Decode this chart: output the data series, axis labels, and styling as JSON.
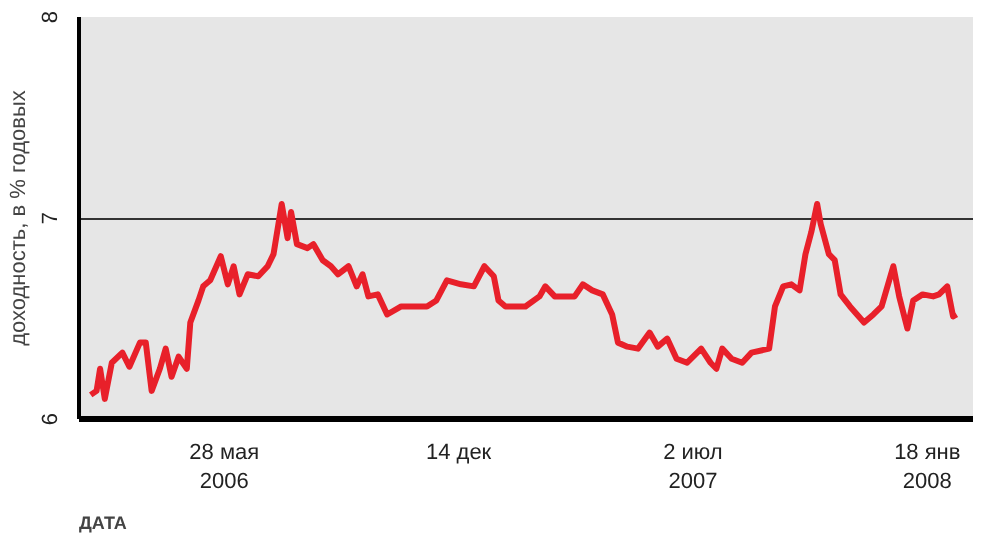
{
  "chart_data": {
    "type": "line",
    "ylabel": "доходность, в % годовых",
    "xlabel": "ДАТА",
    "xlim": [
      "2006-01-24",
      "2008-02-26"
    ],
    "ylim": [
      6,
      8
    ],
    "yticks": [
      6,
      7,
      8
    ],
    "xticks": [
      {
        "value": "2006-05-28",
        "label": "28 мая\n2006"
      },
      {
        "value": "2006-12-14",
        "label": "14 дек"
      },
      {
        "value": "2007-07-02",
        "label": "2 июл\n2007"
      },
      {
        "value": "2008-01-18",
        "label": "18 янв\n2008"
      }
    ],
    "grid": "y",
    "marker": "none",
    "line_style": "solid",
    "series": [
      {
        "color": "#e8202a",
        "x": [
          "2006-02-03",
          "2006-02-08",
          "2006-02-11",
          "2006-02-15",
          "2006-02-21",
          "2006-03-02",
          "2006-03-08",
          "2006-03-17",
          "2006-03-22",
          "2006-03-27",
          "2006-04-03",
          "2006-04-08",
          "2006-04-13",
          "2006-04-19",
          "2006-04-26",
          "2006-04-29",
          "2006-05-06",
          "2006-05-10",
          "2006-05-16",
          "2006-05-25",
          "2006-05-31",
          "2006-06-05",
          "2006-06-10",
          "2006-06-17",
          "2006-06-26",
          "2006-07-04",
          "2006-07-09",
          "2006-07-16",
          "2006-07-21",
          "2006-07-24",
          "2006-07-29",
          "2006-08-07",
          "2006-08-12",
          "2006-08-20",
          "2006-08-27",
          "2006-09-02",
          "2006-09-11",
          "2006-09-18",
          "2006-09-23",
          "2006-09-28",
          "2006-10-06",
          "2006-10-14",
          "2006-10-26",
          "2006-11-07",
          "2006-11-17",
          "2006-11-25",
          "2006-12-04",
          "2006-12-16",
          "2006-12-27",
          "2007-01-05",
          "2007-01-13",
          "2007-01-17",
          "2007-01-23",
          "2007-01-30",
          "2007-02-09",
          "2007-02-21",
          "2007-02-26",
          "2007-03-06",
          "2007-03-15",
          "2007-03-23",
          "2007-03-30",
          "2007-04-07",
          "2007-04-16",
          "2007-04-24",
          "2007-04-29",
          "2007-05-07",
          "2007-05-16",
          "2007-05-26",
          "2007-06-02",
          "2007-06-10",
          "2007-06-18",
          "2007-06-27",
          "2007-07-09",
          "2007-07-17",
          "2007-07-22",
          "2007-07-27",
          "2007-08-04",
          "2007-08-13",
          "2007-08-21",
          "2007-09-05",
          "2007-09-10",
          "2007-09-17",
          "2007-09-24",
          "2007-10-01",
          "2007-10-06",
          "2007-10-11",
          "2007-10-16",
          "2007-10-19",
          "2007-10-26",
          "2007-10-31",
          "2007-11-05",
          "2007-11-13",
          "2007-11-25",
          "2007-12-03",
          "2007-12-10",
          "2007-12-15",
          "2007-12-20",
          "2007-12-25",
          "2008-01-01",
          "2008-01-06",
          "2008-01-14",
          "2008-01-23",
          "2008-01-28",
          "2008-02-04",
          "2008-02-09",
          "2008-02-12"
        ],
        "values": [
          6.12,
          6.14,
          6.25,
          6.1,
          6.28,
          6.33,
          6.26,
          6.38,
          6.38,
          6.14,
          6.25,
          6.35,
          6.21,
          6.31,
          6.25,
          6.48,
          6.59,
          6.66,
          6.69,
          6.81,
          6.67,
          6.76,
          6.62,
          6.72,
          6.71,
          6.76,
          6.82,
          7.07,
          6.9,
          7.03,
          6.87,
          6.85,
          6.87,
          6.79,
          6.76,
          6.72,
          6.76,
          6.66,
          6.72,
          6.61,
          6.62,
          6.52,
          6.56,
          6.56,
          6.56,
          6.59,
          6.69,
          6.67,
          6.66,
          6.76,
          6.71,
          6.59,
          6.56,
          6.56,
          6.56,
          6.61,
          6.66,
          6.61,
          6.61,
          6.61,
          6.67,
          6.64,
          6.62,
          6.52,
          6.38,
          6.36,
          6.35,
          6.43,
          6.36,
          6.4,
          6.3,
          6.28,
          6.35,
          6.28,
          6.25,
          6.35,
          6.3,
          6.28,
          6.33,
          6.35,
          6.56,
          6.66,
          6.67,
          6.64,
          6.82,
          6.93,
          7.07,
          6.97,
          6.82,
          6.79,
          6.62,
          6.56,
          6.48,
          6.52,
          6.56,
          6.66,
          6.76,
          6.61,
          6.45,
          6.59,
          6.62,
          6.61,
          6.62,
          6.66,
          6.51,
          6.52
        ]
      }
    ]
  }
}
